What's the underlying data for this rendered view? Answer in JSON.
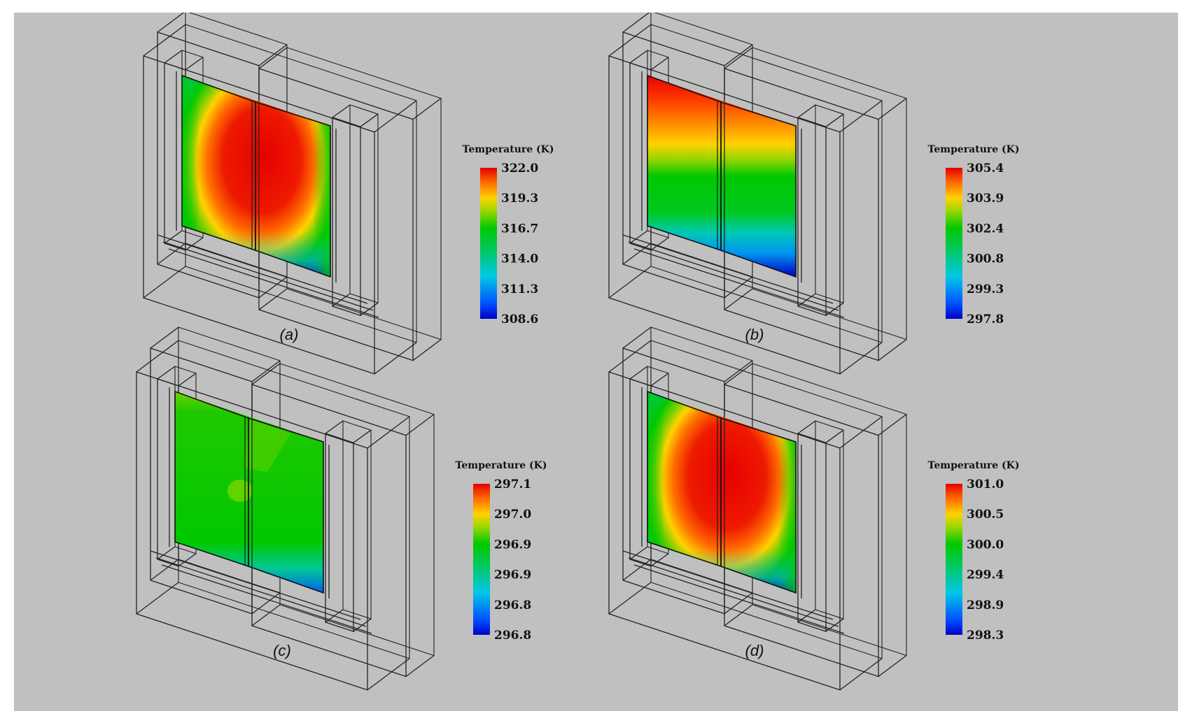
{
  "panels": [
    {
      "id": "a",
      "caption": "(a)",
      "legend_title": "Temperature (K)",
      "ticks": [
        "322.0",
        "319.3",
        "316.7",
        "314.0",
        "311.3",
        "308.6"
      ],
      "pattern": "center-hot"
    },
    {
      "id": "b",
      "caption": "(b)",
      "legend_title": "Temperature (K)",
      "ticks": [
        "305.4",
        "303.9",
        "302.4",
        "300.8",
        "299.3",
        "297.8"
      ],
      "pattern": "top-hot"
    },
    {
      "id": "c",
      "caption": "(c)",
      "legend_title": "Temperature (K)",
      "ticks": [
        "297.1",
        "297.0",
        "296.9",
        "296.9",
        "296.8",
        "296.8"
      ],
      "pattern": "uniform"
    },
    {
      "id": "d",
      "caption": "(d)",
      "legend_title": "Temperature (K)",
      "ticks": [
        "301.0",
        "300.5",
        "300.0",
        "299.4",
        "298.9",
        "298.3"
      ],
      "pattern": "center-hot"
    }
  ],
  "colors": {
    "figure_background": "#c0c0c0",
    "colormap": [
      "#0000c8",
      "#0050ff",
      "#00c8e6",
      "#00c864",
      "#00c800",
      "#a0d800",
      "#ffd200",
      "#ff6e00",
      "#e60000"
    ]
  }
}
